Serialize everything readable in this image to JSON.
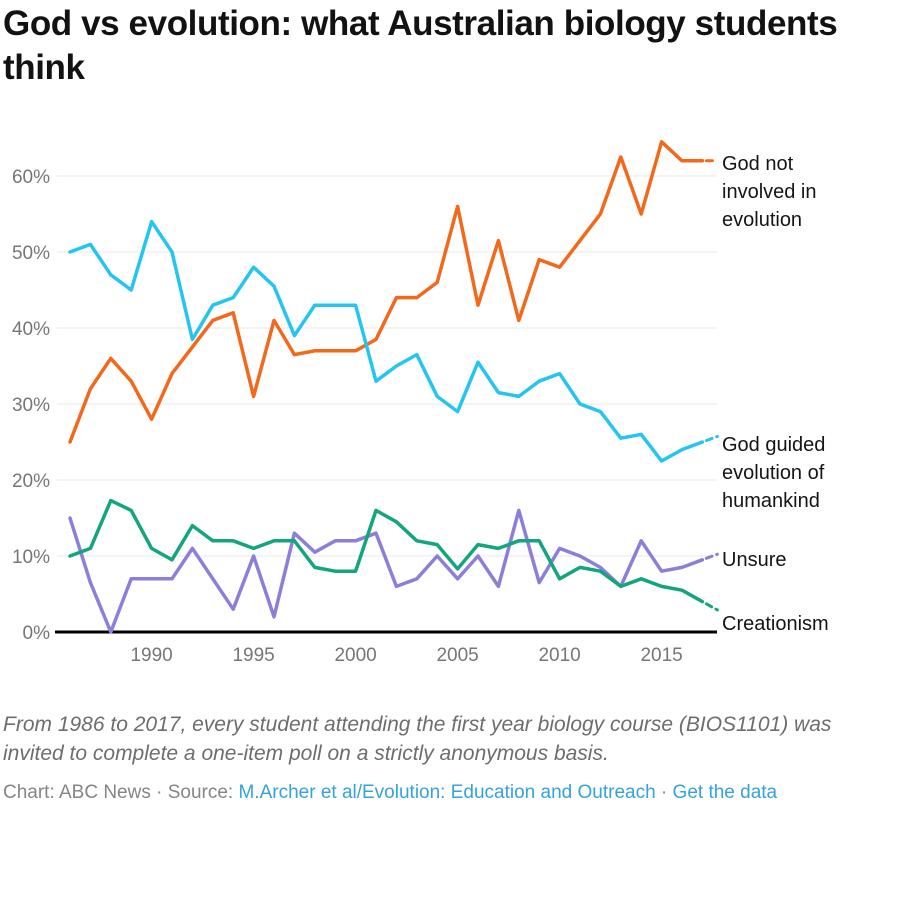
{
  "header": {
    "title": "God vs evolution: what Australian biology students think"
  },
  "chart_data": {
    "type": "line",
    "title": "God vs evolution: what Australian biology students think",
    "xlabel": "",
    "ylabel": "",
    "xlim": [
      1986,
      2017
    ],
    "ylim": [
      0,
      66
    ],
    "grid": "horizontal",
    "legend_position": "right-edge-labels",
    "x": [
      1986,
      1987,
      1988,
      1989,
      1990,
      1991,
      1992,
      1993,
      1994,
      1995,
      1996,
      1997,
      1998,
      1999,
      2000,
      2001,
      2002,
      2003,
      2004,
      2005,
      2006,
      2007,
      2008,
      2009,
      2010,
      2011,
      2012,
      2013,
      2014,
      2015,
      2016,
      2017
    ],
    "x_ticks": [
      1990,
      1995,
      2000,
      2005,
      2010,
      2015
    ],
    "y_ticks": [
      0,
      10,
      20,
      30,
      40,
      50,
      60
    ],
    "y_tick_suffix": "%",
    "series": [
      {
        "id": "god-not-involved",
        "name": "God not involved in evolution",
        "label_lines": [
          "God not",
          "involved in",
          "evolution"
        ],
        "color": "#F2691C",
        "label_dy": -11,
        "values": [
          25,
          32,
          36,
          33,
          28,
          34,
          37.5,
          41,
          42,
          31,
          41,
          36.5,
          37,
          37,
          37,
          38.5,
          44,
          44,
          46,
          56,
          43,
          51.5,
          41,
          49,
          48,
          51.5,
          55,
          62.5,
          55,
          64.5,
          62,
          62
        ]
      },
      {
        "id": "god-guided",
        "name": "God guided evolution of humankind",
        "label_lines": [
          "God guided",
          "evolution of",
          "humankind"
        ],
        "color": "#26C4F0",
        "label_dy": -11,
        "values": [
          50,
          51,
          47,
          45,
          54,
          50,
          38.5,
          43,
          44,
          48,
          45.5,
          39,
          43,
          43,
          43,
          33,
          35,
          36.5,
          31,
          29,
          35.5,
          31.5,
          31,
          33,
          34,
          30,
          29,
          25.5,
          26,
          22.5,
          24,
          25
        ]
      },
      {
        "id": "unsure",
        "name": "Unsure",
        "label_lines": [
          "Unsure"
        ],
        "color": "#8C7FD9",
        "label_dy": -14,
        "values": [
          15,
          6.5,
          0,
          7,
          7,
          7,
          11,
          7,
          3,
          10,
          2,
          13,
          10.5,
          12,
          12,
          13,
          6,
          7,
          10,
          7,
          10,
          6,
          16,
          6.5,
          11,
          10,
          8.5,
          6,
          12,
          8,
          8.5,
          9.5
        ]
      },
      {
        "id": "creationism",
        "name": "Creationism",
        "label_lines": [
          "Creationism"
        ],
        "color": "#13A57E",
        "label_dy": 8,
        "values": [
          10,
          11,
          17.3,
          16,
          11,
          9.5,
          14,
          12,
          12,
          11,
          12,
          12,
          8.5,
          8,
          8,
          16,
          14.5,
          12,
          11.5,
          8.3,
          11.5,
          11,
          12,
          12,
          7,
          8.5,
          8,
          6,
          7,
          6,
          5.5,
          4
        ]
      }
    ]
  },
  "footer": {
    "note": "From 1986 to 2017, every student attending the first year biology course (BIOS1101) was invited to complete a one-item poll on a strictly anonymous basis.",
    "credit_prefix": "Chart: ABC News · Source: ",
    "source_link": "M.Archer et al/Evolution: Education and Outreach",
    "separator": " · ",
    "data_link": "Get the data"
  }
}
